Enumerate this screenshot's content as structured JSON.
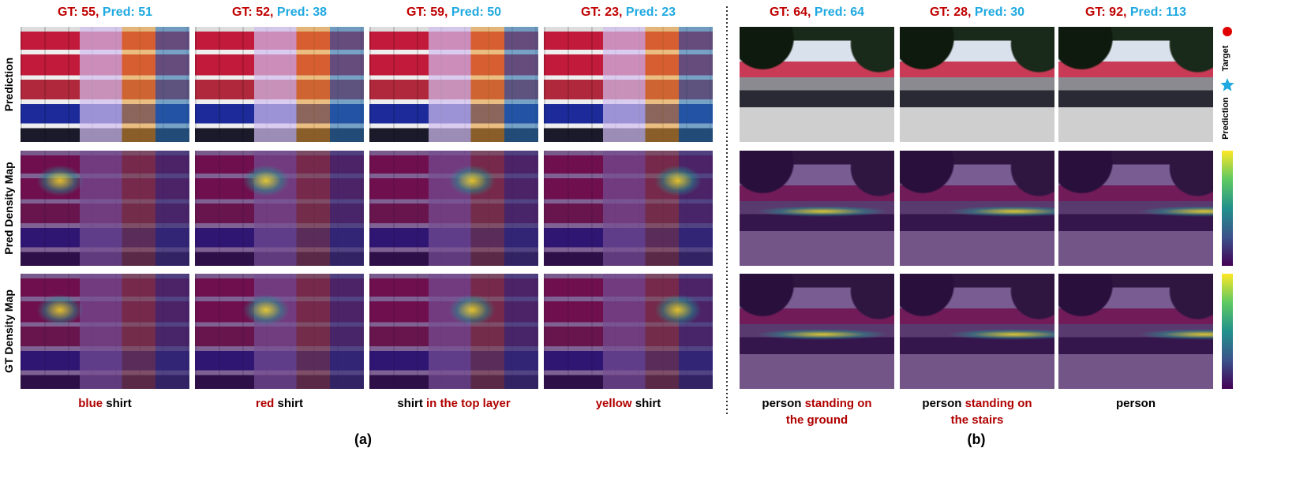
{
  "row_labels": [
    "Prediction",
    "Pred Density Map",
    "GT Density Map"
  ],
  "legend": {
    "target": "Target",
    "prediction": "Prediction"
  },
  "panels": [
    {
      "label": "(a)",
      "columns": [
        {
          "gt": "GT: 55,",
          "pred": "Pred: 51",
          "caption": [
            {
              "text": "blue",
              "highlight": true
            },
            {
              "text": "shirt",
              "highlight": false
            }
          ]
        },
        {
          "gt": "GT: 52,",
          "pred": "Pred: 38",
          "caption": [
            {
              "text": "red",
              "highlight": true
            },
            {
              "text": "shirt",
              "highlight": false
            }
          ]
        },
        {
          "gt": "GT: 59,",
          "pred": "Pred: 50",
          "caption": [
            {
              "text": "shirt",
              "highlight": false
            },
            {
              "text": "in the top layer",
              "highlight": true
            }
          ]
        },
        {
          "gt": "GT: 23,",
          "pred": "Pred: 23",
          "caption": [
            {
              "text": "yellow",
              "highlight": true
            },
            {
              "text": "shirt",
              "highlight": false
            }
          ]
        }
      ]
    },
    {
      "label": "(b)",
      "columns": [
        {
          "gt": "GT: 64,",
          "pred": "Pred: 64",
          "caption": [
            {
              "text": "person",
              "highlight": false
            },
            {
              "text": "standing on the ground",
              "highlight": true
            }
          ]
        },
        {
          "gt": "GT: 28,",
          "pred": "Pred: 30",
          "caption": [
            {
              "text": "person",
              "highlight": false
            },
            {
              "text": "standing on the stairs",
              "highlight": true
            }
          ]
        },
        {
          "gt": "GT: 92,",
          "pred": "Pred: 113",
          "caption": [
            {
              "text": "person",
              "highlight": false
            }
          ]
        }
      ]
    }
  ]
}
